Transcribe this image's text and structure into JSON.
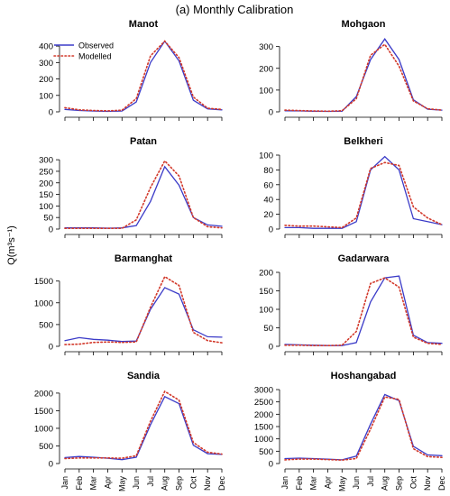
{
  "figure": {
    "title": "(a) Monthly Calibration",
    "ylabel": "Q(m³s⁻¹)",
    "legend": {
      "observed": "Observed",
      "modelled": "Modelled",
      "placement": "top-left of first panel"
    },
    "months": [
      "Jan",
      "Feb",
      "Mar",
      "Apr",
      "May",
      "Jun",
      "Jul",
      "Aug",
      "Sep",
      "Oct",
      "Nov",
      "Dec"
    ],
    "colors": {
      "observed": "#3b3bc8",
      "modelled": "#d2382a",
      "axis": "#000000"
    }
  },
  "chart_data": [
    {
      "type": "line",
      "title": "Manot",
      "ylim": [
        0,
        450
      ],
      "yticks": [
        0,
        100,
        200,
        300,
        400
      ],
      "categories": [
        "Jan",
        "Feb",
        "Mar",
        "Apr",
        "May",
        "Jun",
        "Jul",
        "Aug",
        "Sep",
        "Oct",
        "Nov",
        "Dec"
      ],
      "series": [
        {
          "name": "Observed",
          "values": [
            15,
            8,
            5,
            3,
            5,
            60,
            300,
            430,
            310,
            70,
            18,
            12
          ]
        },
        {
          "name": "Modelled",
          "values": [
            25,
            12,
            8,
            6,
            10,
            80,
            340,
            430,
            330,
            90,
            22,
            15
          ]
        }
      ]
    },
    {
      "type": "line",
      "title": "Mohgaon",
      "ylim": [
        0,
        340
      ],
      "yticks": [
        0,
        100,
        200,
        300
      ],
      "categories": [
        "Jan",
        "Feb",
        "Mar",
        "Apr",
        "May",
        "Jun",
        "Jul",
        "Aug",
        "Sep",
        "Oct",
        "Nov",
        "Dec"
      ],
      "series": [
        {
          "name": "Observed",
          "values": [
            5,
            4,
            3,
            2,
            3,
            70,
            240,
            335,
            240,
            55,
            12,
            8
          ]
        },
        {
          "name": "Modelled",
          "values": [
            8,
            6,
            4,
            3,
            5,
            60,
            260,
            310,
            210,
            50,
            14,
            8
          ]
        }
      ]
    },
    {
      "type": "line",
      "title": "Patan",
      "ylim": [
        0,
        320
      ],
      "yticks": [
        0,
        50,
        100,
        150,
        200,
        250,
        300
      ],
      "categories": [
        "Jan",
        "Feb",
        "Mar",
        "Apr",
        "May",
        "Jun",
        "Jul",
        "Aug",
        "Sep",
        "Oct",
        "Nov",
        "Dec"
      ],
      "series": [
        {
          "name": "Observed",
          "values": [
            5,
            5,
            5,
            4,
            5,
            15,
            120,
            270,
            190,
            50,
            18,
            12
          ]
        },
        {
          "name": "Modelled",
          "values": [
            3,
            3,
            3,
            3,
            3,
            40,
            180,
            295,
            230,
            50,
            10,
            5
          ]
        }
      ]
    },
    {
      "type": "line",
      "title": "Belkheri",
      "ylim": [
        0,
        100
      ],
      "yticks": [
        0,
        20,
        40,
        60,
        80,
        100
      ],
      "categories": [
        "Jan",
        "Feb",
        "Mar",
        "Apr",
        "May",
        "Jun",
        "Jul",
        "Aug",
        "Sep",
        "Oct",
        "Nov",
        "Dec"
      ],
      "series": [
        {
          "name": "Observed",
          "values": [
            2,
            2,
            1,
            1,
            1,
            10,
            80,
            98,
            80,
            14,
            10,
            6
          ]
        },
        {
          "name": "Modelled",
          "values": [
            5,
            4,
            4,
            3,
            2,
            15,
            82,
            90,
            86,
            30,
            15,
            6
          ]
        }
      ]
    },
    {
      "type": "line",
      "title": "Barmanghat",
      "ylim": [
        0,
        1700
      ],
      "yticks": [
        0,
        500,
        1000,
        1500
      ],
      "categories": [
        "Jan",
        "Feb",
        "Mar",
        "Apr",
        "May",
        "Jun",
        "Jul",
        "Aug",
        "Sep",
        "Oct",
        "Nov",
        "Dec"
      ],
      "series": [
        {
          "name": "Observed",
          "values": [
            130,
            200,
            160,
            140,
            110,
            120,
            850,
            1350,
            1200,
            380,
            220,
            210
          ]
        },
        {
          "name": "Modelled",
          "values": [
            40,
            50,
            90,
            100,
            90,
            100,
            900,
            1600,
            1400,
            320,
            130,
            80
          ]
        }
      ]
    },
    {
      "type": "line",
      "title": "Gadarwara",
      "ylim": [
        0,
        200
      ],
      "yticks": [
        0,
        50,
        100,
        150,
        200
      ],
      "categories": [
        "Jan",
        "Feb",
        "Mar",
        "Apr",
        "May",
        "Jun",
        "Jul",
        "Aug",
        "Sep",
        "Oct",
        "Nov",
        "Dec"
      ],
      "series": [
        {
          "name": "Observed",
          "values": [
            5,
            4,
            3,
            2,
            2,
            10,
            120,
            185,
            190,
            30,
            10,
            8
          ]
        },
        {
          "name": "Modelled",
          "values": [
            3,
            3,
            2,
            2,
            3,
            40,
            170,
            185,
            160,
            25,
            8,
            5
          ]
        }
      ]
    },
    {
      "type": "line",
      "title": "Sandia",
      "ylim": [
        0,
        2100
      ],
      "yticks": [
        0,
        500,
        1000,
        1500,
        2000
      ],
      "categories": [
        "Jan",
        "Feb",
        "Mar",
        "Apr",
        "May",
        "Jun",
        "Jul",
        "Aug",
        "Sep",
        "Oct",
        "Nov",
        "Dec"
      ],
      "series": [
        {
          "name": "Observed",
          "values": [
            170,
            200,
            180,
            150,
            110,
            180,
            1100,
            1900,
            1700,
            520,
            280,
            260
          ]
        },
        {
          "name": "Modelled",
          "values": [
            140,
            160,
            160,
            160,
            150,
            220,
            1200,
            2050,
            1800,
            600,
            320,
            270
          ]
        }
      ]
    },
    {
      "type": "line",
      "title": "Hoshangabad",
      "ylim": [
        0,
        3000
      ],
      "yticks": [
        0,
        500,
        1000,
        1500,
        2000,
        2500,
        3000
      ],
      "categories": [
        "Jan",
        "Feb",
        "Mar",
        "Apr",
        "May",
        "Jun",
        "Jul",
        "Aug",
        "Sep",
        "Oct",
        "Nov",
        "Dec"
      ],
      "series": [
        {
          "name": "Observed",
          "values": [
            200,
            220,
            200,
            180,
            150,
            300,
            1600,
            2800,
            2550,
            700,
            350,
            320
          ]
        },
        {
          "name": "Modelled",
          "values": [
            150,
            180,
            180,
            160,
            140,
            200,
            1400,
            2700,
            2600,
            600,
            280,
            250
          ]
        }
      ]
    }
  ]
}
